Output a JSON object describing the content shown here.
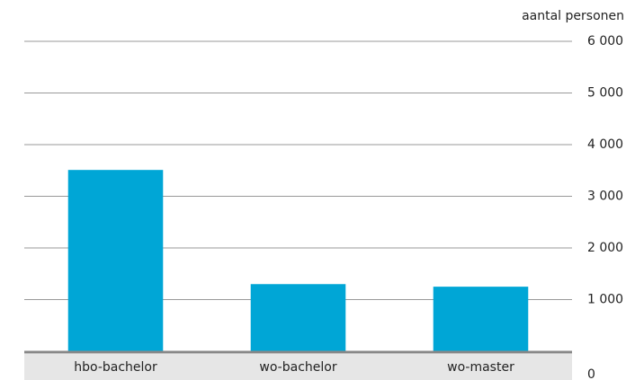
{
  "chart_data": {
    "type": "bar",
    "y_axis_label": "aantal personen",
    "categories": [
      "hbo-bachelor",
      "wo-bachelor",
      "wo-master"
    ],
    "values": [
      3510,
      1300,
      1250
    ],
    "color": "#00a6d6",
    "ylim": [
      0,
      6000
    ],
    "yticks": [
      0,
      {
        "value": 1000,
        "label": "1 000"
      },
      {
        "value": 2000,
        "label": "2 000"
      },
      {
        "value": 3000,
        "label": "3 000"
      },
      {
        "value": 4000,
        "label": "4 000"
      },
      {
        "value": 5000,
        "label": "5 000"
      },
      {
        "value": 6000,
        "label": "6 000"
      }
    ],
    "grid": true
  }
}
